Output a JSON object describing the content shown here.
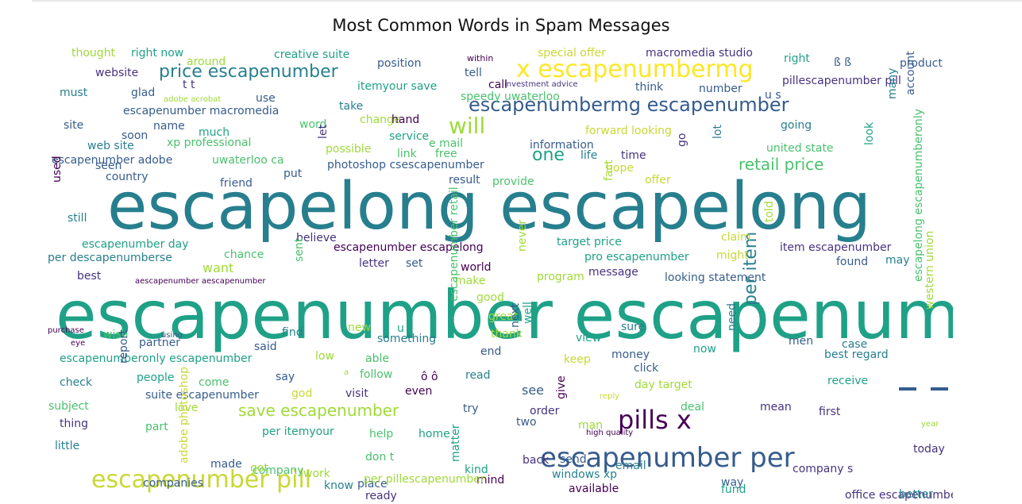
{
  "chart_data": {
    "type": "wordcloud",
    "title": "Most Common Words in Spam Messages",
    "colormap": "viridis",
    "background": "#ffffff",
    "words": [
      "escapenumber escapenumber",
      "escapelong escapelong",
      "escapenumber per",
      "x escapenumbermg",
      "escapenumbermg escapenumber",
      "escapenumber pill",
      "pills x",
      "price escapenumber",
      "will",
      "per item",
      "save escapenumber",
      "retail price",
      "one",
      "escapelong escapenumberonly",
      "thought",
      "right now",
      "around",
      "creative suite",
      "position",
      "within",
      "special offer",
      "macromedia studio",
      "right",
      "ß ß",
      "product",
      "website",
      "t t",
      "tell",
      "call",
      "investment advice",
      "think",
      "number",
      "pillescapenumber pill",
      "must",
      "glad",
      "adobe acrobat",
      "use",
      "itemyour save",
      "speedy uwaterloo",
      "u s",
      "escapenumber macromedia",
      "take",
      "site",
      "name",
      "soon",
      "much",
      "word",
      "change",
      "hand",
      "forward looking",
      "going",
      "many",
      "account",
      "web site",
      "xp professional",
      "service",
      "e mail",
      "information",
      "united state",
      "escapenumber adobe",
      "seen",
      "uwaterloo ca",
      "possible",
      "link",
      "free",
      "life",
      "time",
      "go",
      "lot",
      "look",
      "let",
      "photoshop csescapenumber",
      "hope",
      "country",
      "put",
      "result",
      "provide",
      "offer",
      "fact",
      "used",
      "friend",
      "still",
      "claim",
      "told",
      "escapenumber day",
      "believe",
      "target price",
      "escapenumber escapelong",
      "pro escapenumber",
      "might",
      "item escapenumber",
      "per descapenumberse",
      "chance",
      "set",
      "letter",
      "found",
      "may",
      "want",
      "world",
      "message",
      "best",
      "sent",
      "program",
      "looking statement",
      "aescapenumber aescapenumber",
      "make",
      "good",
      "never",
      "great",
      "purchase",
      "wish",
      "using",
      "new",
      "u",
      "sure",
      "eye",
      "partner",
      "find",
      "something",
      "thank",
      "view",
      "case",
      "men",
      "western union",
      "escapenumber retail",
      "said",
      "end",
      "next",
      "well",
      "now",
      "need",
      "money",
      "escapenumberonly escapenumber",
      "able",
      "low",
      "keep",
      "best regard",
      "click",
      "check",
      "people",
      "come",
      "say",
      "a",
      "follow",
      "ô ô",
      "read",
      "receive",
      "report",
      "suite escapenumber",
      "god",
      "visit",
      "even",
      "see",
      "day target",
      "subject",
      "love",
      "try",
      "order",
      "reply",
      "deal",
      "mean",
      "first",
      "thing",
      "part",
      "two",
      "give",
      "man",
      "home",
      "help",
      "per itemyour",
      "high quality",
      "little",
      "year",
      "today",
      "adobe photoshop",
      "made",
      "company",
      "work",
      "don t",
      "matter",
      "kind",
      "back",
      "send",
      "email",
      "companies",
      "mind",
      "place",
      "way",
      "got",
      "company s",
      "office escapenumber",
      "ready",
      "know",
      "available",
      "windows xp",
      "per pillescapenumber",
      "fund",
      "better"
    ]
  }
}
